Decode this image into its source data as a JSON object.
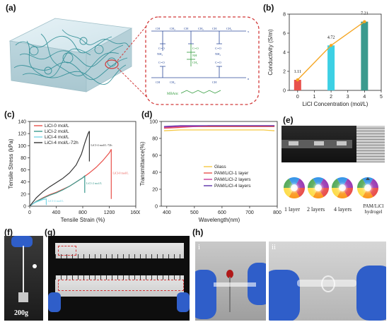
{
  "panels": {
    "a": "(a)",
    "b": "(b)",
    "c": "(c)",
    "d": "(d)",
    "e": "(e)",
    "f": "(f)",
    "g": "(g)",
    "h": "(h)"
  },
  "panel_a": {
    "mbaam_label": "MBAm:"
  },
  "panel_e": {
    "labels": [
      "1 layer",
      "2 layers",
      "4 layers",
      "PAM/LiCl\nhydrogel"
    ]
  },
  "panel_f": {
    "weight_label": "200g"
  },
  "panel_h": {
    "sub_i": "i",
    "sub_ii": "ii"
  },
  "colors": {
    "red": "#e8514b",
    "cyan": "#3dd0e4",
    "teal": "#3a9a8e",
    "orange": "#f5a623",
    "dark": "#333333",
    "purple": "#5b2fa8",
    "magenta": "#c83a9a",
    "gray": "#3c3c3c",
    "yellow": "#f5c842"
  },
  "chart_data": [
    {
      "id": "b",
      "type": "bar",
      "xlabel": "LiCl Concentration (mol/L)",
      "ylabel": "Conductivity (S/m)",
      "x": [
        0,
        2,
        4
      ],
      "values": [
        1.11,
        4.72,
        7.21
      ],
      "data_labels": [
        "1.11",
        "4.72",
        "7.21"
      ],
      "bar_colors": [
        "#e8514b",
        "#3dd0e4",
        "#3a9a8e"
      ],
      "line_color": "#f5a623",
      "xlim": [
        -0.5,
        5
      ],
      "ylim": [
        0,
        8
      ],
      "xticks": [
        "0",
        "1",
        "2",
        "3",
        "4",
        "5"
      ],
      "yticks": [
        "0",
        "2",
        "4",
        "6",
        "8"
      ]
    },
    {
      "id": "c",
      "type": "line",
      "xlabel": "Tensile Strain (%)",
      "ylabel": "Tensile Stress (kPa)",
      "xlim": [
        0,
        1600
      ],
      "ylim": [
        0,
        140
      ],
      "xticks": [
        "0",
        "400",
        "800",
        "1200",
        "1600"
      ],
      "yticks": [
        "0",
        "20",
        "40",
        "60",
        "80",
        "100",
        "120",
        "140"
      ],
      "series": [
        {
          "name": "LiCl-0 mol/L",
          "color": "#e8514b",
          "points": [
            [
              0,
              0
            ],
            [
              100,
              8
            ],
            [
              200,
              14
            ],
            [
              300,
              19
            ],
            [
              400,
              23
            ],
            [
              500,
              28
            ],
            [
              600,
              33
            ],
            [
              700,
              40
            ],
            [
              800,
              47
            ],
            [
              900,
              55
            ],
            [
              1000,
              64
            ],
            [
              1100,
              75
            ],
            [
              1200,
              88
            ],
            [
              1230,
              94
            ]
          ],
          "drop_to": 12,
          "end_label": "LiCl-0 mol/L"
        },
        {
          "name": "LiCl-2 mol/L",
          "color": "#3a9a8e",
          "points": [
            [
              0,
              0
            ],
            [
              100,
              8
            ],
            [
              200,
              13
            ],
            [
              300,
              18
            ],
            [
              400,
              22
            ],
            [
              500,
              27
            ],
            [
              600,
              33
            ],
            [
              700,
              40
            ],
            [
              800,
              47
            ],
            [
              830,
              50
            ]
          ],
          "drop_to": 22,
          "end_label": "LiCl-2 mol/L"
        },
        {
          "name": "LiCl-4 mol/L",
          "color": "#7ad6e6",
          "points": [
            [
              0,
              0
            ],
            [
              50,
              4
            ],
            [
              100,
              7
            ],
            [
              150,
              9
            ],
            [
              200,
              11
            ],
            [
              250,
              12
            ]
          ],
          "drop_to": 2,
          "end_label": "LiCl-4 mol/L"
        },
        {
          "name": "LiCl-4 mol/L-72h",
          "color": "#333333",
          "points": [
            [
              0,
              0
            ],
            [
              100,
              14
            ],
            [
              200,
              24
            ],
            [
              300,
              32
            ],
            [
              400,
              39
            ],
            [
              500,
              46
            ],
            [
              600,
              55
            ],
            [
              700,
              68
            ],
            [
              780,
              86
            ],
            [
              830,
              104
            ],
            [
              880,
              120
            ],
            [
              900,
              124
            ]
          ],
          "drop_to": 74,
          "end_label": "LiCl-4 mol/L-72h"
        }
      ]
    },
    {
      "id": "d",
      "type": "line",
      "xlabel": "Wavelength(nm)",
      "ylabel": "Transmittance(%)",
      "xlim": [
        380,
        800
      ],
      "ylim": [
        0,
        100
      ],
      "xticks": [
        "400",
        "500",
        "600",
        "700",
        "800"
      ],
      "yticks": [
        "0",
        "20",
        "40",
        "60",
        "80",
        "100"
      ],
      "series": [
        {
          "name": "Glass",
          "color": "#f5c842",
          "points": [
            [
              390,
              89
            ],
            [
              450,
              90
            ],
            [
              500,
              90
            ],
            [
              550,
              90
            ],
            [
              600,
              90
            ],
            [
              650,
              90
            ],
            [
              700,
              90
            ],
            [
              750,
              90
            ],
            [
              790,
              89
            ]
          ]
        },
        {
          "name": "PAM/LiCl-1 layer",
          "color": "#e8514b",
          "points": [
            [
              390,
              92
            ],
            [
              450,
              93
            ],
            [
              500,
              94
            ],
            [
              550,
              94
            ],
            [
              600,
              94
            ],
            [
              650,
              94
            ],
            [
              700,
              94
            ],
            [
              750,
              94
            ],
            [
              790,
              94
            ]
          ]
        },
        {
          "name": "PAM/LiCl-2 layers",
          "color": "#c83a9a",
          "points": [
            [
              390,
              93
            ],
            [
              450,
              94
            ],
            [
              500,
              94
            ],
            [
              550,
              95
            ],
            [
              600,
              95
            ],
            [
              650,
              95
            ],
            [
              700,
              95
            ],
            [
              750,
              95
            ],
            [
              790,
              95
            ]
          ]
        },
        {
          "name": "PAM/LiCl-4 layers",
          "color": "#5b2fa8",
          "points": [
            [
              390,
              94
            ],
            [
              450,
              95
            ],
            [
              500,
              95
            ],
            [
              550,
              95
            ],
            [
              600,
              95
            ],
            [
              650,
              95
            ],
            [
              700,
              95
            ],
            [
              750,
              95
            ],
            [
              790,
              95
            ]
          ]
        }
      ]
    }
  ]
}
